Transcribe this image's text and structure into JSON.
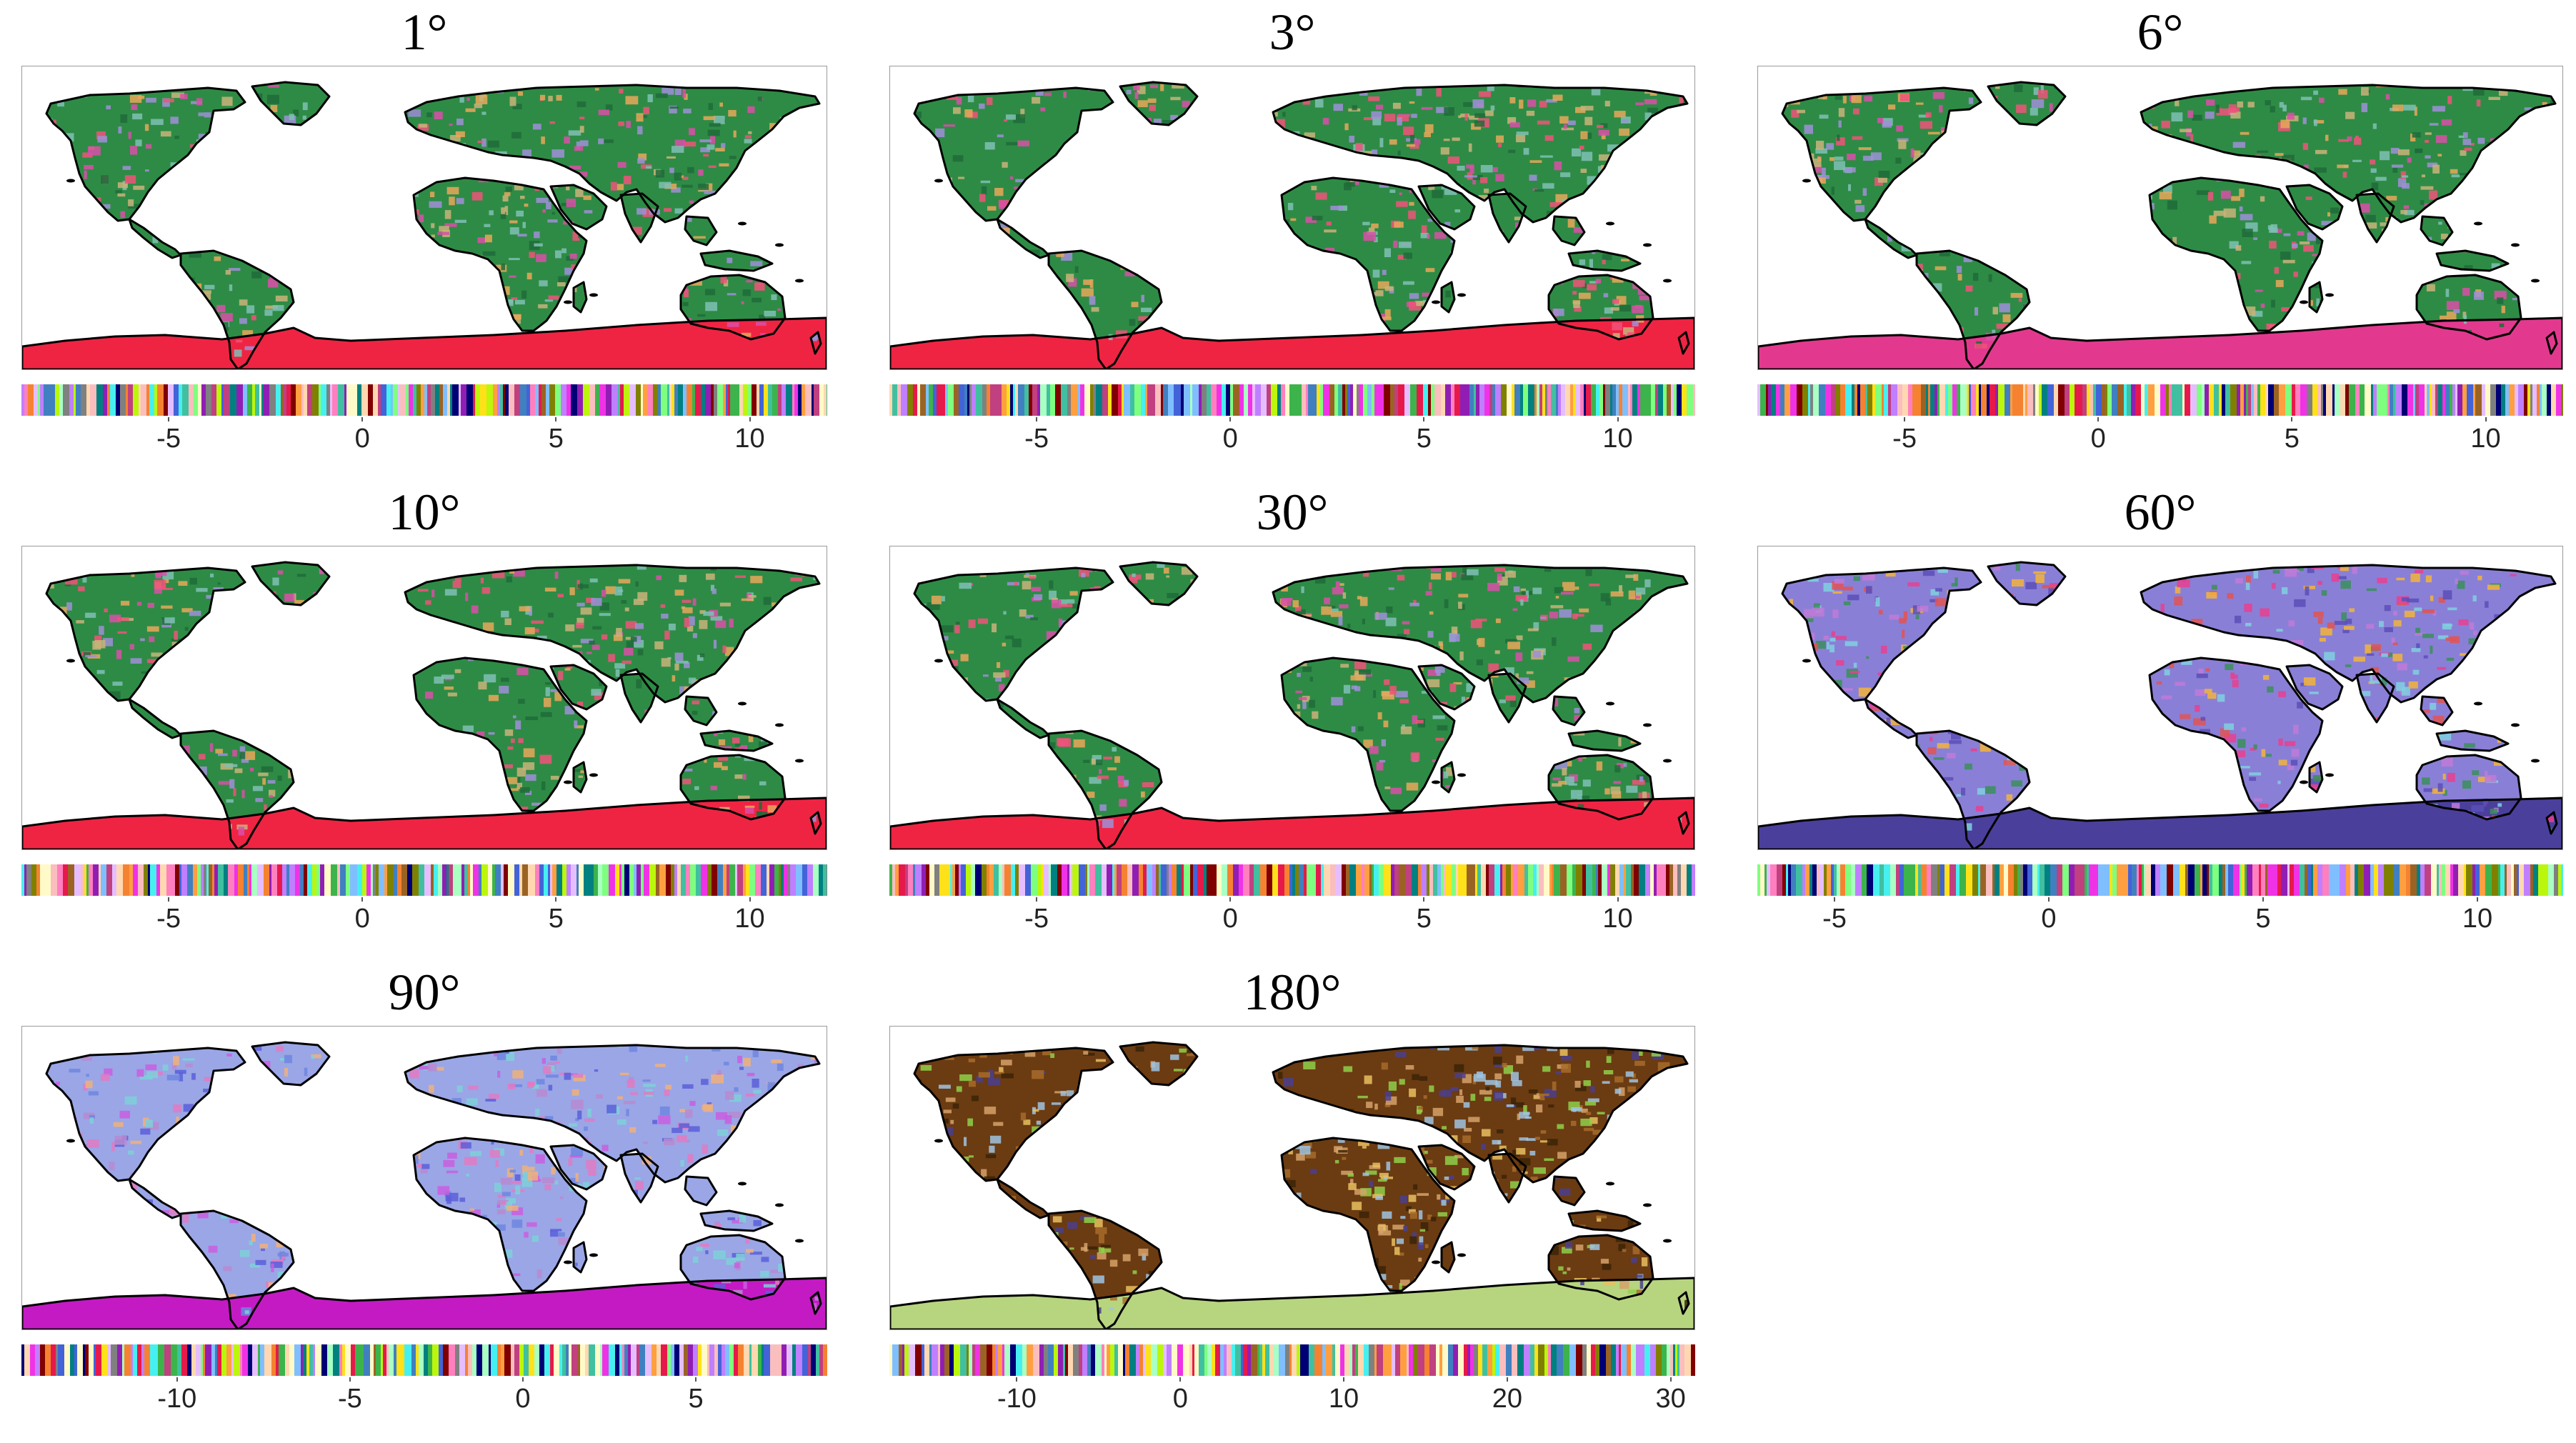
{
  "panels": [
    {
      "title": "1°",
      "land_color": "#2e8b45",
      "antarctica_color": "#ef2443",
      "blob_colors": [
        "#f0527a",
        "#9f8fd8",
        "#c9b37a",
        "#d94fa8",
        "#1f6b3a",
        "#7fbfb5",
        "#e8a75b"
      ],
      "ticks": [
        "-5",
        "0",
        "5",
        "10"
      ],
      "range": [
        -8.8,
        12
      ]
    },
    {
      "title": "3°",
      "land_color": "#2e8b45",
      "antarctica_color": "#ef2443",
      "blob_colors": [
        "#f0527a",
        "#9f8fd8",
        "#c9b37a",
        "#d94fa8",
        "#1f6b3a",
        "#7fbfb5",
        "#e8a75b"
      ],
      "ticks": [
        "-5",
        "0",
        "5",
        "10"
      ],
      "range": [
        -8.8,
        12
      ]
    },
    {
      "title": "6°",
      "land_color": "#2e8b45",
      "antarctica_color": "#e2398e",
      "blob_colors": [
        "#f0527a",
        "#9f8fd8",
        "#c9b37a",
        "#d94fa8",
        "#1f6b3a",
        "#7fbfb5",
        "#e8a75b"
      ],
      "ticks": [
        "-5",
        "0",
        "5",
        "10"
      ],
      "range": [
        -8.8,
        12
      ]
    },
    {
      "title": "10°",
      "land_color": "#2e8b45",
      "antarctica_color": "#ef2443",
      "blob_colors": [
        "#f0527a",
        "#9f8fd8",
        "#c9b37a",
        "#d94fa8",
        "#1f6b3a",
        "#7fbfb5",
        "#e8a75b"
      ],
      "ticks": [
        "-5",
        "0",
        "5",
        "10"
      ],
      "range": [
        -8.8,
        12
      ]
    },
    {
      "title": "30°",
      "land_color": "#2e8b45",
      "antarctica_color": "#ef2443",
      "blob_colors": [
        "#f0527a",
        "#9f8fd8",
        "#c9b37a",
        "#d94fa8",
        "#1f6b3a",
        "#7fbfb5",
        "#e8a75b"
      ],
      "ticks": [
        "-5",
        "0",
        "5",
        "10"
      ],
      "range": [
        -8.8,
        12
      ]
    },
    {
      "title": "60°",
      "land_color": "#8a7fd6",
      "antarctica_color": "#4b3f9c",
      "blob_colors": [
        "#e8408f",
        "#3a8f5a",
        "#f2b43b",
        "#5b4fb8",
        "#c07ad8",
        "#e05454",
        "#7fd0e0"
      ],
      "ticks": [
        "-5",
        "0",
        "5",
        "10"
      ],
      "range": [
        -6.8,
        12
      ]
    },
    {
      "title": "90°",
      "land_color": "#9aa6e6",
      "antarctica_color": "#c41ac4",
      "blob_colors": [
        "#e27ac2",
        "#c95ee0",
        "#f0b07a",
        "#6f86e0",
        "#b98ad0",
        "#5b5fd8",
        "#7ed0d8"
      ],
      "ticks": [
        "-10",
        "-5",
        "0",
        "5"
      ],
      "range": [
        -14.5,
        8.8
      ]
    },
    {
      "title": "180°",
      "land_color": "#6b3b12",
      "antarctica_color": "#b7d47f",
      "blob_colors": [
        "#a66c2a",
        "#e8c060",
        "#8fd04a",
        "#4a3f8e",
        "#d5a26a",
        "#3b2407",
        "#9fc4e0"
      ],
      "ticks": [
        "-10",
        "0",
        "10",
        "20",
        "30"
      ],
      "range": [
        -17.8,
        31.5
      ]
    }
  ],
  "colorbar_palette": [
    "#e6194b",
    "#3cb44b",
    "#ffe119",
    "#4363d8",
    "#f58231",
    "#911eb4",
    "#46f0f0",
    "#f032e6",
    "#bcf60c",
    "#fabebe",
    "#008080",
    "#e6beff",
    "#9a6324",
    "#fffac8",
    "#800000",
    "#aaffc3",
    "#808000",
    "#ffd8b1",
    "#000075",
    "#808080",
    "#ff7fbf",
    "#7fbfff",
    "#bf7fff",
    "#7fff7f",
    "#ff9f40",
    "#40c0a0",
    "#c04080",
    "#4080c0"
  ]
}
